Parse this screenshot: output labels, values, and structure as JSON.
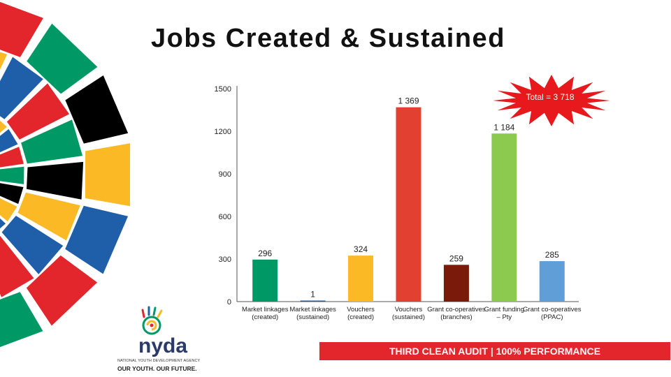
{
  "slide": {
    "title": "Jobs Created & Sustained",
    "total_label": "Total = 3 718",
    "banner": "THIRD CLEAN AUDIT | 100% PERFORMANCE"
  },
  "logo": {
    "name": "nyda",
    "agency": "NATIONAL YOUTH DEVELOPMENT AGENCY",
    "slogan": "OUR YOUTH. OUR FUTURE."
  },
  "colors": {
    "banner": "#e3262b",
    "burst": "#e8191c"
  },
  "chart_data": {
    "type": "bar",
    "categories": [
      [
        "Market linkages",
        "(created)"
      ],
      [
        "Market linkages",
        "(sustained)"
      ],
      [
        "Vouchers",
        "(created)"
      ],
      [
        "Vouchers",
        "(sustained)"
      ],
      [
        "Grant co-operatives",
        "(branches)"
      ],
      [
        "Grant funding",
        "– Pty"
      ],
      [
        "Grant co-operatives",
        "(PPAC)"
      ]
    ],
    "values": [
      296,
      1,
      324,
      1369,
      259,
      1184,
      285
    ],
    "value_labels": [
      "296",
      "1",
      "324",
      "1 369",
      "259",
      "1 184",
      "285"
    ],
    "colors": [
      "#009966",
      "#1f5faa",
      "#fbb926",
      "#e24031",
      "#7a1a0a",
      "#8cc94f",
      "#5f9ed6"
    ],
    "yticks": [
      0,
      300,
      600,
      900,
      1200,
      1500
    ],
    "ylim": [
      0,
      1500
    ],
    "grid": false
  }
}
